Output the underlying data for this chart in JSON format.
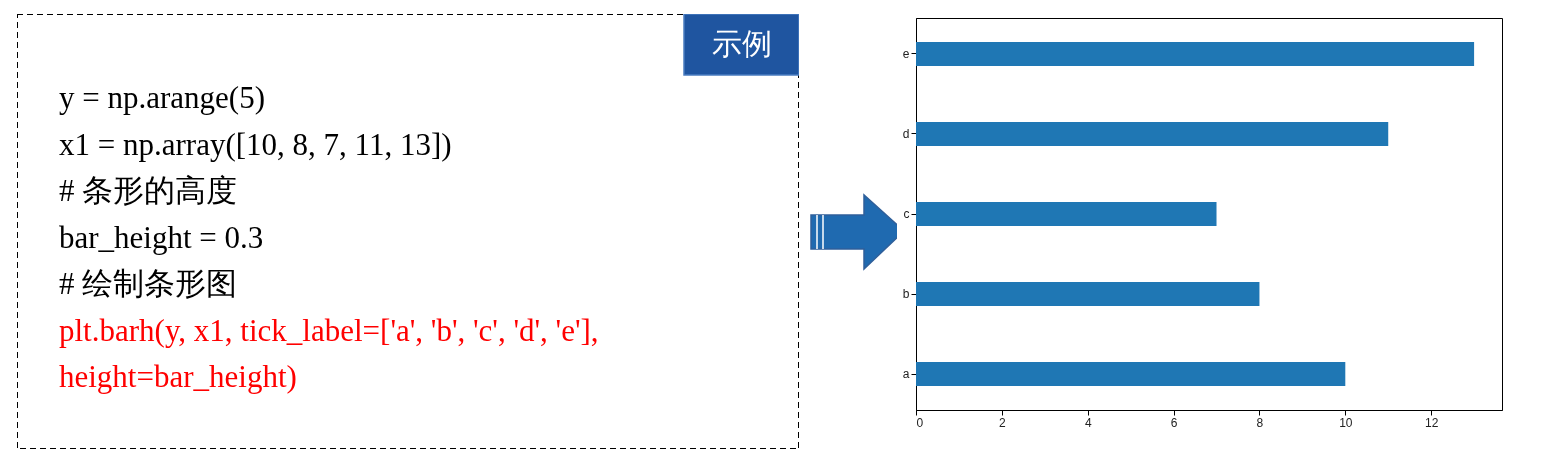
{
  "chart_data": [
    {
      "type": "other",
      "title": "示例",
      "annotations": [
        "y = np.arange(5)",
        "x1 = np.array([10, 8, 7, 11, 13])",
        "# 条形的高度",
        "bar_height = 0.3",
        "# 绘制条形图",
        "plt.barh(y, x1, tick_label=['a', 'b', 'c', 'd', 'e'],",
        "height=bar_height)"
      ],
      "colors": [
        "#000000",
        "#000000",
        "#000000",
        "#000000",
        "#000000",
        "#ff0000",
        "#ff0000"
      ]
    },
    {
      "type": "bar",
      "orientation": "horizontal",
      "categories": [
        "e",
        "d",
        "c",
        "b",
        "a"
      ],
      "values": [
        13,
        11,
        7,
        8,
        10
      ],
      "color": "#1f77b4",
      "xlim": [
        0,
        13.65
      ],
      "xticks": [
        0,
        2,
        4,
        6,
        8,
        10,
        12
      ],
      "grid": false
    }
  ]
}
